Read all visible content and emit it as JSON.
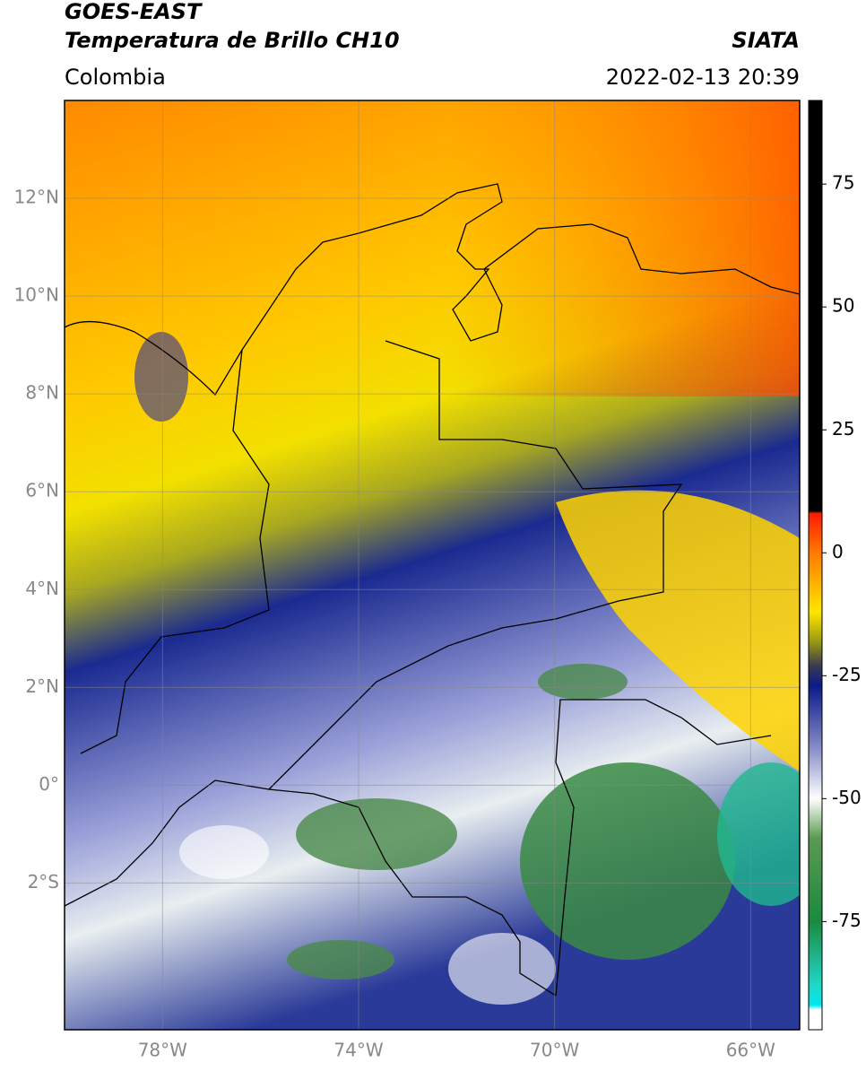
{
  "header": {
    "title": "GOES-EAST",
    "subtitle": "Temperatura de Brillo CH10",
    "source": "SIATA",
    "region": "Colombia",
    "timestamp": "2022-02-13 20:39"
  },
  "map": {
    "xlim": [
      -80,
      -65
    ],
    "ylim": [
      -5,
      14
    ],
    "xticks": [
      {
        "value": -78,
        "label": "78°W"
      },
      {
        "value": -74,
        "label": "74°W"
      },
      {
        "value": -70,
        "label": "70°W"
      },
      {
        "value": -66,
        "label": "66°W"
      }
    ],
    "yticks": [
      {
        "value": 12,
        "label": "12°N"
      },
      {
        "value": 10,
        "label": "10°N"
      },
      {
        "value": 8,
        "label": "8°N"
      },
      {
        "value": 6,
        "label": "6°N"
      },
      {
        "value": 4,
        "label": "4°N"
      },
      {
        "value": 2,
        "label": "2°N"
      },
      {
        "value": 0,
        "label": "0°"
      },
      {
        "value": -2,
        "label": "2°S"
      }
    ],
    "grid": true
  },
  "colorbar": {
    "lim": [
      -97,
      92
    ],
    "ticks": [
      75,
      50,
      25,
      0,
      -25,
      -50,
      -75
    ],
    "colormap": [
      {
        "value": 92,
        "color": "#000000"
      },
      {
        "value": 8.5,
        "color": "#000000"
      },
      {
        "value": 8,
        "color": "#ff1a00"
      },
      {
        "value": 0,
        "color": "#ff7a00"
      },
      {
        "value": -12,
        "color": "#ffe600"
      },
      {
        "value": -18,
        "color": "#9a9a10"
      },
      {
        "value": -23,
        "color": "#3a3a50"
      },
      {
        "value": -27,
        "color": "#0a1a88"
      },
      {
        "value": -40,
        "color": "#8a90c8"
      },
      {
        "value": -50,
        "color": "#ffffff"
      },
      {
        "value": -58,
        "color": "#5a9a50"
      },
      {
        "value": -75,
        "color": "#1a8a40"
      },
      {
        "value": -88,
        "color": "#20d8c8"
      },
      {
        "value": -92,
        "color": "#00e8f0"
      },
      {
        "value": -93,
        "color": "#ffffff"
      },
      {
        "value": -97,
        "color": "#ffffff"
      }
    ]
  }
}
